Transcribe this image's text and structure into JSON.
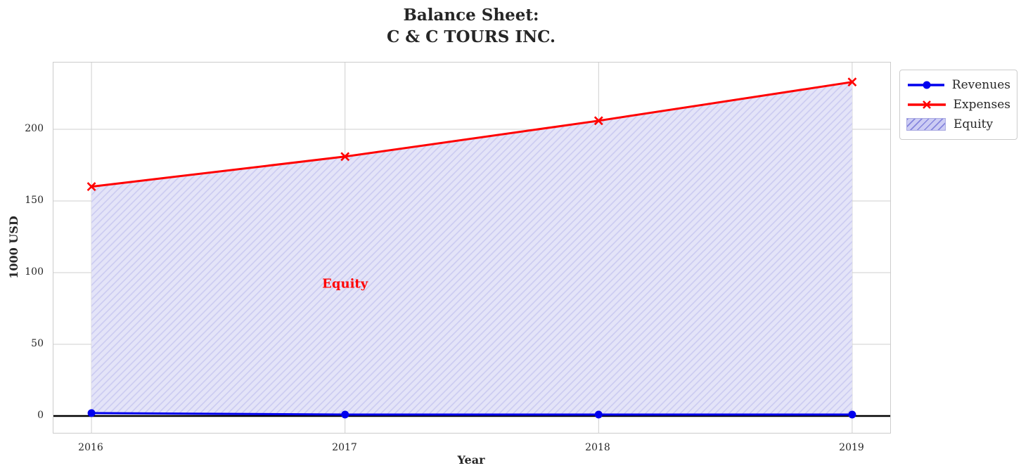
{
  "title": "Balance Sheet:\nC & C TOURS INC.",
  "colors": {
    "revenues": "#0000ee",
    "expenses": "#ff0000",
    "equity_face": "#e4e4f8",
    "equity_hatch": "#c9c9f0",
    "legend_equity_face": "#ccccf4",
    "legend_equity_hatch": "#8585dd",
    "grid": "#cfcfcf",
    "axis_border": "#cccccc",
    "zero_line": "#000000",
    "text": "#262626",
    "annotation": "#ff0000"
  },
  "chart_data": {
    "type": "line",
    "title": "Balance Sheet:\nC & C TOURS INC.",
    "xlabel": "Year",
    "ylabel": "1000 USD",
    "x": [
      2016,
      2017,
      2018,
      2019
    ],
    "series": [
      {
        "name": "Revenues",
        "marker": "circle",
        "values": [
          2,
          1,
          1,
          1
        ]
      },
      {
        "name": "Expenses",
        "marker": "x",
        "values": [
          160,
          181,
          206,
          233
        ]
      }
    ],
    "fill_between": {
      "name": "Equity",
      "lower_series": "Revenues",
      "upper_series": "Expenses",
      "hatch": "/"
    },
    "annotation": {
      "text": "Equity",
      "x": 2017,
      "y": 92
    },
    "legend": [
      "Revenues",
      "Expenses",
      "Equity"
    ],
    "legend_position": "outside upper right",
    "xticks": [
      "2016",
      "2017",
      "2018",
      "2019"
    ],
    "yticks": [
      0,
      50,
      100,
      150,
      200
    ],
    "xlim": [
      2015.85,
      2019.15
    ],
    "ylim": [
      -11.76,
      246.57
    ],
    "grid": true,
    "zero_line": true
  }
}
